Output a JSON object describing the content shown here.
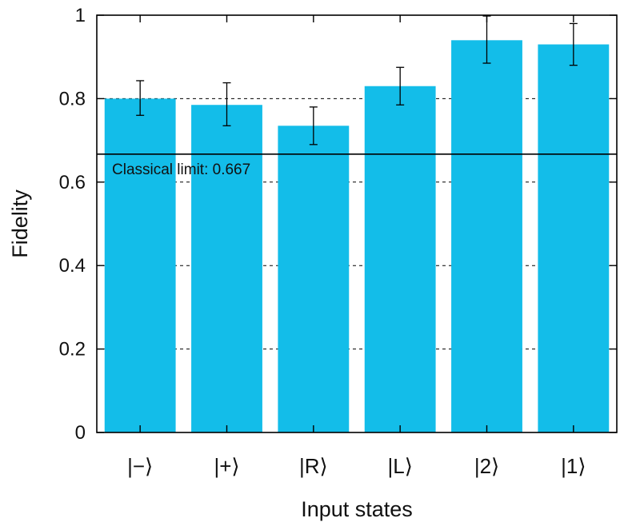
{
  "chart_data": {
    "type": "bar",
    "title": "",
    "xlabel": "Input states",
    "ylabel": "Fidelity",
    "ylim": [
      0,
      1
    ],
    "yticks": [
      0,
      0.2,
      0.4,
      0.6,
      0.8,
      1
    ],
    "ytick_labels": [
      "0",
      "0.2",
      "0.4",
      "0.6",
      "0.8",
      "1"
    ],
    "grid": "horizontal dashed",
    "categories": [
      "|−⟩",
      "|+⟩",
      "|R⟩",
      "|L⟩",
      "|2⟩",
      "|1⟩"
    ],
    "values": [
      0.8,
      0.785,
      0.735,
      0.83,
      0.94,
      0.93
    ],
    "error_low": [
      0.76,
      0.735,
      0.69,
      0.785,
      0.885,
      0.88
    ],
    "error_high": [
      0.843,
      0.838,
      0.78,
      0.875,
      0.998,
      0.98
    ],
    "reference_line": {
      "value": 0.667,
      "label": "Classical limit: 0.667"
    },
    "bar_color": "#13bde9",
    "line_color": "#000000"
  }
}
